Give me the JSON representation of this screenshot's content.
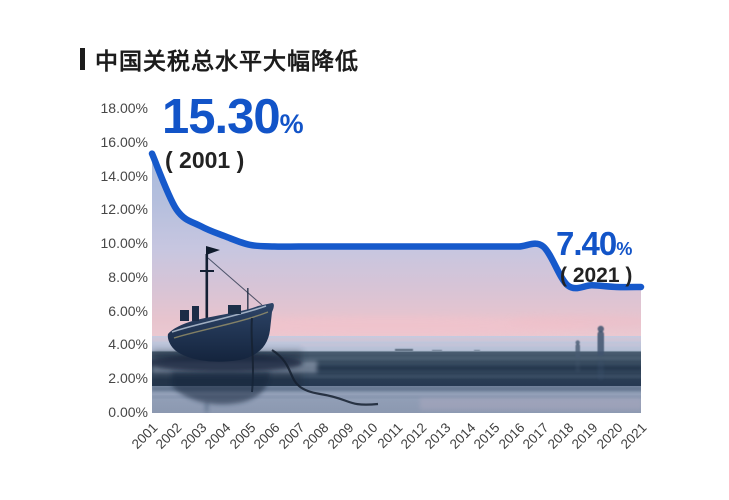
{
  "page": {
    "title": "中国关税总水平大幅降低"
  },
  "chart_data": {
    "type": "area",
    "title": "中国关税总水平大幅降低",
    "x": [
      "2001",
      "2002",
      "2003",
      "2004",
      "2005",
      "2006",
      "2007",
      "2008",
      "2009",
      "2010",
      "2011",
      "2012",
      "2013",
      "2014",
      "2015",
      "2016",
      "2017",
      "2018",
      "2019",
      "2020",
      "2021"
    ],
    "series": [
      {
        "name": "中国关税总水平",
        "values": [
          15.3,
          12.0,
          11.0,
          10.4,
          9.9,
          9.8,
          9.8,
          9.8,
          9.8,
          9.8,
          9.8,
          9.8,
          9.8,
          9.8,
          9.8,
          9.8,
          9.8,
          7.5,
          7.5,
          7.4,
          7.4
        ]
      }
    ],
    "xlabel": "",
    "ylabel": "",
    "ylim": [
      0,
      18
    ],
    "y_tick_labels": [
      "18.00%",
      "16.00%",
      "14.00%",
      "12.00%",
      "10.00%",
      "8.00%",
      "6.00%",
      "4.00%",
      "2.00%",
      "0.00%"
    ],
    "x_tick_rotation": 45,
    "grid": false,
    "legend": "none",
    "line_color": "#1659cb",
    "fill_style": "photo: fishing boat beached on tidal flat at dusk",
    "annotations": [
      {
        "value": "15.30",
        "unit": "%",
        "label": "( 2001 )"
      },
      {
        "value": "7.40",
        "unit": "%",
        "label": "( 2021 )"
      }
    ]
  },
  "colors": {
    "accent_blue": "#1254c8",
    "line_blue": "#1659cb",
    "title_text": "#1c1c1c",
    "axis_text": "#474747",
    "background": "#ffffff"
  }
}
